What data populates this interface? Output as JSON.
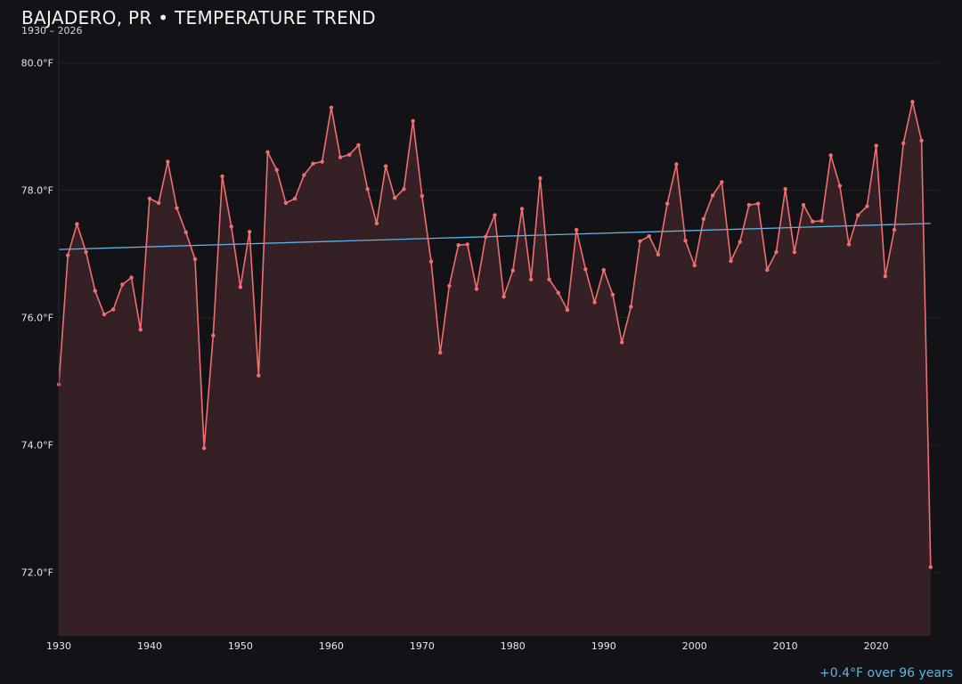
{
  "header": {
    "title": "BAJADERO, PR • TEMPERATURE TREND",
    "subtitle": "1930 – 2026"
  },
  "footer": {
    "trend_note": "+0.4°F over 96 years"
  },
  "colors": {
    "background": "#131217",
    "line": "#f06e6e",
    "area": "#352025",
    "trend": "#5bb6e6",
    "grid": "#22202a"
  },
  "chart_data": {
    "type": "line",
    "title": "BAJADERO, PR • TEMPERATURE TREND",
    "subtitle": "1930 – 2026",
    "xlabel": "",
    "ylabel": "",
    "xlim": [
      1930,
      2027
    ],
    "ylim": [
      71.0,
      80.5
    ],
    "x_ticks": [
      1930,
      1940,
      1950,
      1960,
      1970,
      1980,
      1990,
      2000,
      2010,
      2020
    ],
    "x_tick_labels": [
      "1930",
      "1940",
      "1950",
      "1960",
      "1970",
      "1980",
      "1990",
      "2000",
      "2010",
      "2020"
    ],
    "y_ticks": [
      72,
      74,
      76,
      78,
      80
    ],
    "y_tick_labels": [
      "72.0°F",
      "74.0°F",
      "76.0°F",
      "78.0°F",
      "80.0°F"
    ],
    "grid": true,
    "area_fill": true,
    "x": [
      1930,
      1931,
      1932,
      1933,
      1934,
      1935,
      1936,
      1937,
      1938,
      1939,
      1940,
      1941,
      1942,
      1943,
      1944,
      1945,
      1946,
      1947,
      1948,
      1949,
      1950,
      1951,
      1952,
      1953,
      1954,
      1955,
      1956,
      1957,
      1958,
      1959,
      1960,
      1961,
      1962,
      1963,
      1964,
      1965,
      1966,
      1967,
      1968,
      1969,
      1970,
      1971,
      1972,
      1973,
      1974,
      1975,
      1976,
      1977,
      1978,
      1979,
      1980,
      1981,
      1982,
      1983,
      1984,
      1985,
      1986,
      1987,
      1988,
      1989,
      1990,
      1991,
      1992,
      1993,
      1994,
      1995,
      1996,
      1997,
      1998,
      1999,
      2000,
      2001,
      2002,
      2003,
      2004,
      2005,
      2006,
      2007,
      2008,
      2009,
      2010,
      2011,
      2012,
      2013,
      2014,
      2015,
      2016,
      2017,
      2018,
      2019,
      2020,
      2021,
      2022,
      2023,
      2024,
      2025,
      2026
    ],
    "series": [
      {
        "values": [
          74.95,
          76.98,
          77.47,
          77.03,
          76.42,
          76.05,
          76.13,
          76.52,
          76.63,
          75.81,
          77.87,
          77.8,
          78.45,
          77.72,
          77.34,
          76.92,
          73.95,
          75.72,
          78.22,
          77.43,
          76.48,
          77.35,
          75.09,
          78.6,
          78.32,
          77.8,
          77.87,
          78.24,
          78.42,
          78.45,
          79.3,
          78.52,
          78.56,
          78.71,
          78.02,
          77.48,
          78.38,
          77.88,
          78.02,
          79.09,
          77.91,
          76.88,
          75.45,
          76.5,
          77.14,
          77.15,
          76.45,
          77.27,
          77.61,
          76.33,
          76.74,
          77.71,
          76.6,
          78.19,
          76.6,
          76.39,
          76.12,
          77.38,
          76.76,
          76.24,
          76.75,
          76.36,
          75.61,
          76.17,
          77.2,
          77.28,
          76.99,
          77.79,
          78.41,
          77.21,
          76.82,
          77.55,
          77.92,
          78.13,
          76.89,
          77.19,
          77.77,
          77.79,
          76.75,
          77.03,
          78.02,
          77.03,
          77.77,
          77.51,
          77.52,
          78.55,
          78.07,
          77.15,
          77.61,
          77.75,
          78.7,
          76.65,
          77.38,
          78.74,
          79.39,
          78.78,
          72.08
        ]
      },
      {
        "values": [
          77.07,
          77.48
        ],
        "x": [
          1930,
          2026
        ]
      }
    ]
  }
}
